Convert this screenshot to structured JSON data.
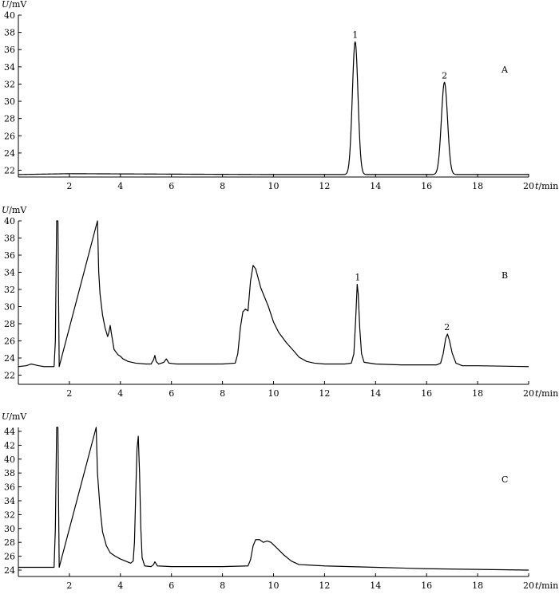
{
  "chart_data": [
    {
      "type": "line",
      "panel_label": "A",
      "ylabel": "U/mV",
      "xlabel": "t/min",
      "xlim": [
        0,
        20
      ],
      "ylim": [
        21,
        40
      ],
      "xticks": [
        2,
        4,
        6,
        8,
        10,
        12,
        14,
        16,
        18,
        20
      ],
      "yticks": [
        22,
        24,
        26,
        28,
        30,
        32,
        34,
        36,
        38,
        40
      ],
      "baseline": [
        [
          0,
          21.5
        ],
        [
          2,
          21.6
        ],
        [
          10,
          21.5
        ],
        [
          20,
          21.5
        ]
      ],
      "peaks": [
        {
          "label": "1",
          "x": 13.2,
          "y": 36.9,
          "w": 0.11
        },
        {
          "label": "2",
          "x": 16.7,
          "y": 32.2,
          "w": 0.12
        }
      ]
    },
    {
      "type": "line",
      "panel_label": "B",
      "ylabel": "U/mV",
      "xlabel": "t/min",
      "xlim": [
        0,
        20
      ],
      "ylim": [
        21,
        40
      ],
      "xticks": [
        2,
        4,
        6,
        8,
        10,
        12,
        14,
        16,
        18,
        20
      ],
      "yticks": [
        22,
        24,
        26,
        28,
        30,
        32,
        34,
        36,
        38,
        40
      ],
      "points": [
        [
          0,
          23.0
        ],
        [
          0.3,
          23.1
        ],
        [
          0.5,
          23.3
        ],
        [
          0.8,
          23.1
        ],
        [
          1.0,
          23.0
        ],
        [
          1.4,
          23.0
        ],
        [
          1.45,
          26
        ],
        [
          1.5,
          40
        ],
        [
          1.55,
          40
        ],
        [
          1.6,
          23.0
        ],
        [
          3.1,
          40
        ],
        [
          3.15,
          34
        ],
        [
          3.2,
          31.5
        ],
        [
          3.3,
          29.0
        ],
        [
          3.4,
          27.5
        ],
        [
          3.5,
          26.5
        ],
        [
          3.55,
          27.0
        ],
        [
          3.6,
          27.8
        ],
        [
          3.65,
          26.8
        ],
        [
          3.75,
          25.0
        ],
        [
          3.9,
          24.4
        ],
        [
          4.0,
          24.2
        ],
        [
          4.1,
          23.9
        ],
        [
          4.3,
          23.6
        ],
        [
          4.6,
          23.4
        ],
        [
          5.0,
          23.3
        ],
        [
          5.2,
          23.3
        ],
        [
          5.3,
          23.8
        ],
        [
          5.35,
          24.3
        ],
        [
          5.4,
          23.6
        ],
        [
          5.5,
          23.3
        ],
        [
          5.7,
          23.5
        ],
        [
          5.8,
          23.9
        ],
        [
          5.9,
          23.4
        ],
        [
          6.2,
          23.3
        ],
        [
          7.0,
          23.3
        ],
        [
          8.0,
          23.3
        ],
        [
          8.5,
          23.4
        ],
        [
          8.6,
          24.5
        ],
        [
          8.7,
          27.5
        ],
        [
          8.8,
          29.4
        ],
        [
          8.9,
          29.7
        ],
        [
          9.0,
          29.5
        ],
        [
          9.1,
          33.0
        ],
        [
          9.2,
          34.8
        ],
        [
          9.3,
          34.4
        ],
        [
          9.5,
          32.2
        ],
        [
          9.8,
          30.0
        ],
        [
          10.0,
          28.2
        ],
        [
          10.2,
          27.0
        ],
        [
          10.5,
          25.8
        ],
        [
          10.8,
          24.8
        ],
        [
          11.0,
          24.1
        ],
        [
          11.3,
          23.6
        ],
        [
          11.6,
          23.4
        ],
        [
          12.0,
          23.3
        ],
        [
          12.8,
          23.3
        ],
        [
          13.05,
          23.4
        ],
        [
          13.15,
          24.5
        ],
        [
          13.22,
          28.5
        ],
        [
          13.28,
          32.6
        ],
        [
          13.32,
          31.5
        ],
        [
          13.38,
          27.5
        ],
        [
          13.45,
          24.5
        ],
        [
          13.55,
          23.5
        ],
        [
          14.0,
          23.3
        ],
        [
          15.0,
          23.2
        ],
        [
          16.4,
          23.2
        ],
        [
          16.55,
          23.4
        ],
        [
          16.65,
          24.5
        ],
        [
          16.75,
          26.3
        ],
        [
          16.82,
          26.8
        ],
        [
          16.9,
          26.0
        ],
        [
          17.0,
          24.6
        ],
        [
          17.15,
          23.4
        ],
        [
          17.4,
          23.1
        ],
        [
          18.0,
          23.1
        ],
        [
          20.0,
          23.0
        ]
      ],
      "peaks": [
        {
          "label": "1",
          "x": 13.3,
          "y": 32.6
        },
        {
          "label": "2",
          "x": 16.8,
          "y": 26.8
        }
      ]
    },
    {
      "type": "line",
      "panel_label": "C",
      "ylabel": "U/mV",
      "xlabel": "t/min",
      "xlim": [
        0,
        20
      ],
      "ylim": [
        23,
        45
      ],
      "xticks": [
        2,
        4,
        6,
        8,
        10,
        12,
        14,
        16,
        18,
        20
      ],
      "yticks": [
        24,
        26,
        28,
        30,
        32,
        34,
        36,
        38,
        40,
        42,
        44
      ],
      "points": [
        [
          0,
          24.4
        ],
        [
          1.0,
          24.4
        ],
        [
          1.4,
          24.4
        ],
        [
          1.45,
          30
        ],
        [
          1.5,
          45
        ],
        [
          1.55,
          45
        ],
        [
          1.6,
          24.4
        ],
        [
          3.05,
          45
        ],
        [
          3.1,
          38.0
        ],
        [
          3.2,
          33.0
        ],
        [
          3.3,
          29.5
        ],
        [
          3.45,
          27.5
        ],
        [
          3.6,
          26.5
        ],
        [
          3.8,
          26.0
        ],
        [
          4.0,
          25.6
        ],
        [
          4.2,
          25.3
        ],
        [
          4.4,
          25.0
        ],
        [
          4.5,
          25.3
        ],
        [
          4.55,
          28.0
        ],
        [
          4.6,
          35.0
        ],
        [
          4.65,
          41.5
        ],
        [
          4.7,
          43.3
        ],
        [
          4.75,
          38.0
        ],
        [
          4.8,
          30.0
        ],
        [
          4.85,
          25.8
        ],
        [
          4.95,
          24.6
        ],
        [
          5.2,
          24.5
        ],
        [
          5.3,
          24.8
        ],
        [
          5.35,
          25.2
        ],
        [
          5.45,
          24.6
        ],
        [
          6.0,
          24.5
        ],
        [
          7.0,
          24.5
        ],
        [
          8.0,
          24.5
        ],
        [
          9.0,
          24.6
        ],
        [
          9.1,
          25.5
        ],
        [
          9.2,
          27.5
        ],
        [
          9.3,
          28.4
        ],
        [
          9.45,
          28.4
        ],
        [
          9.6,
          28.0
        ],
        [
          9.75,
          28.2
        ],
        [
          9.9,
          28.0
        ],
        [
          10.1,
          27.3
        ],
        [
          10.4,
          26.2
        ],
        [
          10.7,
          25.3
        ],
        [
          11.0,
          24.8
        ],
        [
          12.0,
          24.6
        ],
        [
          14.0,
          24.4
        ],
        [
          16.0,
          24.2
        ],
        [
          18.0,
          24.1
        ],
        [
          20.0,
          24.0
        ]
      ]
    }
  ]
}
